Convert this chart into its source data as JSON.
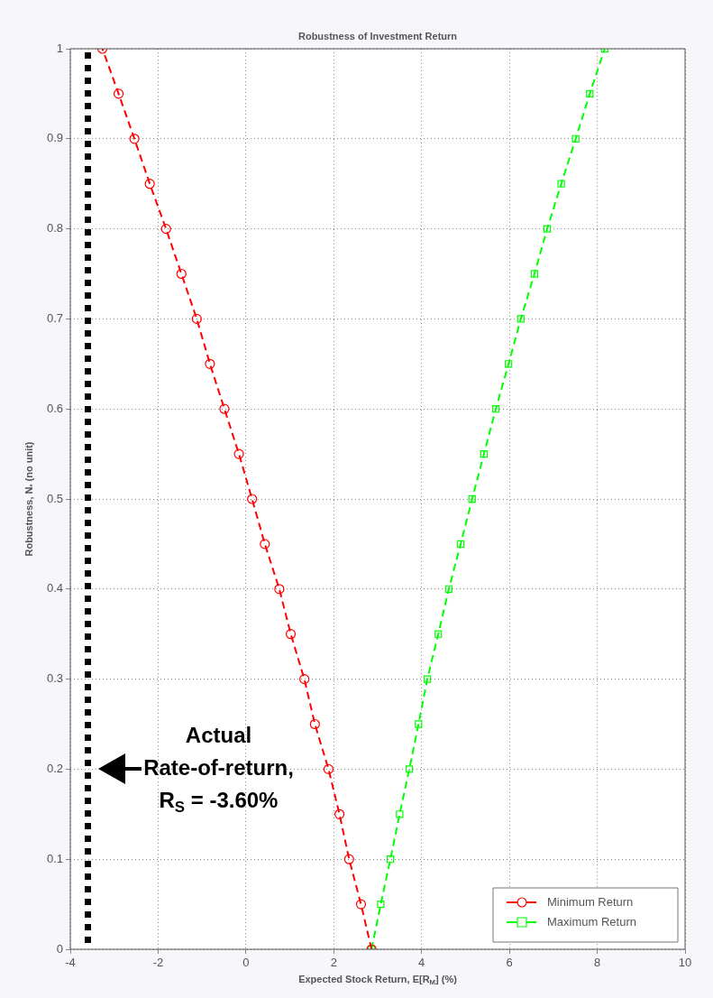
{
  "chart_data": {
    "type": "line",
    "title": "Robustness of Investment Return",
    "xlabel": "Expected Stock Return, E[R$_{M}$] (%)",
    "ylabel": "Robustness, N$_{*}$ (no unit)",
    "xlim": [
      -4,
      10
    ],
    "xticks": [
      -4,
      -2,
      0,
      2,
      4,
      6,
      8,
      10
    ],
    "ylim": [
      0,
      1
    ],
    "yticks": [
      0,
      0.1,
      0.2,
      0.3,
      0.4,
      0.5,
      0.6,
      0.7,
      0.8,
      0.9,
      1
    ],
    "grid": true,
    "legend": "bottom right",
    "line_style": "dashed",
    "series": [
      {
        "name": "Minimum Return",
        "color": "#ff0000",
        "marker": "circle",
        "x": [
          2.86,
          2.62,
          2.35,
          2.13,
          1.88,
          1.57,
          1.33,
          1.02,
          0.76,
          0.43,
          0.14,
          -0.16,
          -0.49,
          -0.82,
          -1.12,
          -1.47,
          -1.82,
          -2.19,
          -2.54,
          -2.9,
          -3.27
        ],
        "values": [
          0,
          0.05,
          0.1,
          0.15,
          0.2,
          0.25,
          0.3,
          0.35,
          0.4,
          0.45,
          0.5,
          0.55,
          0.6,
          0.65,
          0.7,
          0.75,
          0.8,
          0.85,
          0.9,
          0.95,
          1
        ]
      },
      {
        "name": "Maximum Return",
        "color": "#00ff00",
        "marker": "square",
        "x": [
          2.86,
          3.07,
          3.29,
          3.5,
          3.72,
          3.93,
          4.13,
          4.38,
          4.62,
          4.89,
          5.15,
          5.42,
          5.69,
          5.98,
          6.26,
          6.57,
          6.86,
          7.18,
          7.51,
          7.83,
          8.17
        ],
        "values": [
          0,
          0.05,
          0.1,
          0.15,
          0.2,
          0.25,
          0.3,
          0.35,
          0.4,
          0.45,
          0.5,
          0.55,
          0.6,
          0.65,
          0.7,
          0.75,
          0.8,
          0.85,
          0.9,
          0.95,
          1
        ]
      }
    ],
    "ref_lines": [
      {
        "axis": "x",
        "value": -3.6,
        "label": "Actual Rate-of-return, R$_{S}$ = -3.60%",
        "color": "#000000",
        "line_style": "dotted"
      }
    ]
  }
}
